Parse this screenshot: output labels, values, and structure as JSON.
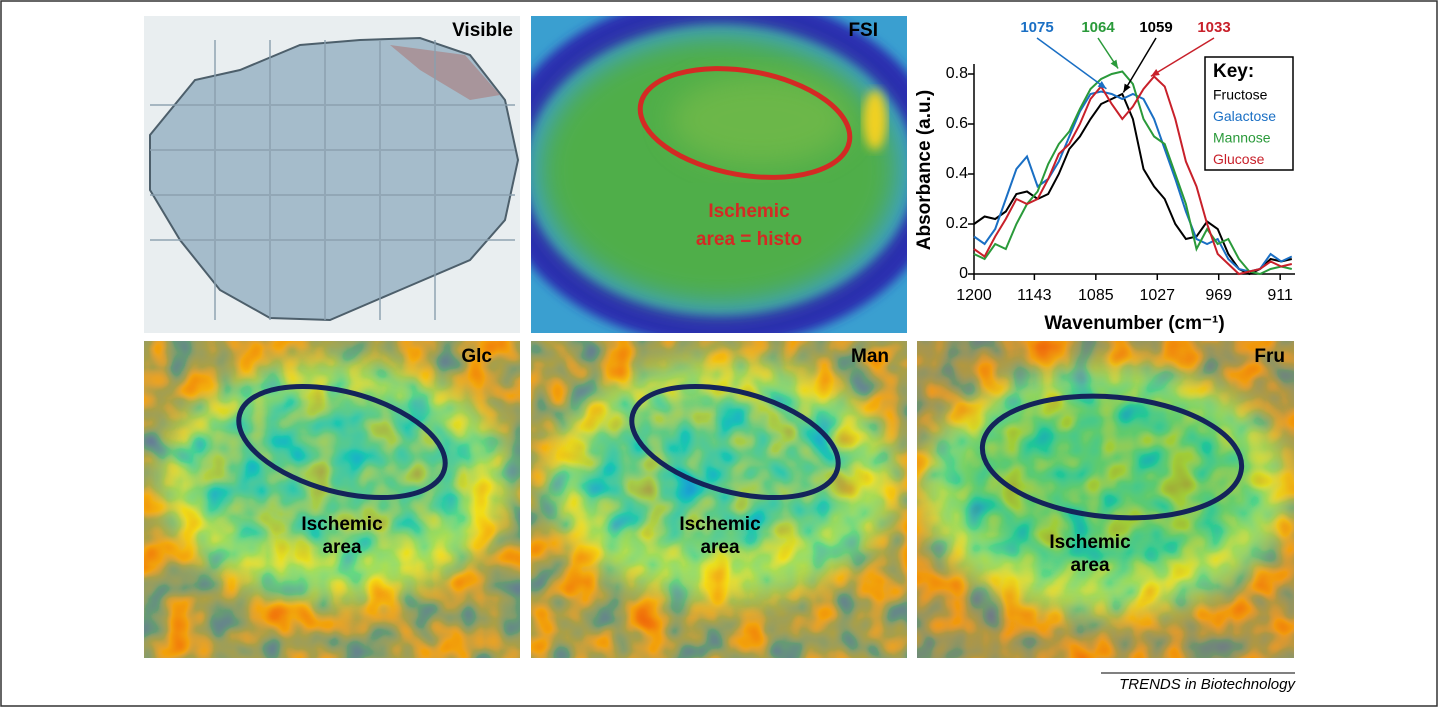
{
  "panels": [
    {
      "label": "Visible"
    },
    {
      "label": "FSI",
      "annotation": [
        "Ischemic",
        "area = histo"
      ]
    },
    {
      "label": "Glc",
      "annotation": [
        "Ischemic",
        "area"
      ]
    },
    {
      "label": "Man",
      "annotation": [
        "Ischemic",
        "area"
      ]
    },
    {
      "label": "Fru",
      "annotation": [
        "Ischemic",
        "area"
      ]
    }
  ],
  "chart_data": {
    "type": "line",
    "xlabel": "Wavenumber (cm⁻¹)",
    "ylabel": "Absorbance (a.u.)",
    "x": [
      1200,
      1190,
      1180,
      1170,
      1160,
      1150,
      1140,
      1130,
      1120,
      1110,
      1100,
      1090,
      1080,
      1070,
      1060,
      1050,
      1040,
      1030,
      1020,
      1010,
      1000,
      990,
      980,
      970,
      960,
      950,
      940,
      930,
      920,
      910,
      900
    ],
    "xlim": [
      1200,
      897
    ],
    "xticks": [
      1200,
      1143,
      1085,
      1027,
      969,
      911
    ],
    "ylim": [
      0,
      0.84
    ],
    "yticks": [
      0,
      0.2,
      0.4,
      0.6,
      0.8
    ],
    "legend_title": "Key:",
    "legend_position": "upper right",
    "series": [
      {
        "name": "Fructose",
        "color": "#000000",
        "values": [
          0.2,
          0.23,
          0.22,
          0.25,
          0.32,
          0.33,
          0.3,
          0.32,
          0.4,
          0.5,
          0.55,
          0.62,
          0.68,
          0.7,
          0.72,
          0.62,
          0.42,
          0.35,
          0.3,
          0.2,
          0.14,
          0.15,
          0.21,
          0.18,
          0.08,
          0.02,
          0.0,
          0.02,
          0.06,
          0.05,
          0.06
        ]
      },
      {
        "name": "Galactose",
        "color": "#1a6fc4",
        "values": [
          0.15,
          0.12,
          0.18,
          0.3,
          0.42,
          0.47,
          0.35,
          0.38,
          0.45,
          0.55,
          0.65,
          0.72,
          0.73,
          0.72,
          0.7,
          0.72,
          0.7,
          0.62,
          0.5,
          0.38,
          0.25,
          0.14,
          0.12,
          0.14,
          0.06,
          0.02,
          0.01,
          0.02,
          0.08,
          0.05,
          0.07
        ]
      },
      {
        "name": "Mannose",
        "color": "#2a9a3a",
        "values": [
          0.08,
          0.06,
          0.12,
          0.1,
          0.2,
          0.28,
          0.33,
          0.44,
          0.52,
          0.57,
          0.66,
          0.74,
          0.78,
          0.8,
          0.81,
          0.76,
          0.62,
          0.55,
          0.52,
          0.4,
          0.28,
          0.1,
          0.18,
          0.12,
          0.14,
          0.06,
          0.01,
          0.0,
          0.02,
          0.03,
          0.02
        ]
      },
      {
        "name": "Glucose",
        "color": "#c8202a",
        "values": [
          0.1,
          0.07,
          0.15,
          0.22,
          0.3,
          0.28,
          0.3,
          0.38,
          0.48,
          0.52,
          0.6,
          0.7,
          0.75,
          0.68,
          0.62,
          0.67,
          0.74,
          0.79,
          0.75,
          0.62,
          0.45,
          0.35,
          0.2,
          0.08,
          0.04,
          0.0,
          0.01,
          0.02,
          0.05,
          0.03,
          0.04
        ]
      }
    ],
    "peaks": [
      {
        "value": 1075,
        "color": "#1a6fc4"
      },
      {
        "value": 1064,
        "color": "#2a9a3a"
      },
      {
        "value": 1059,
        "color": "#000000"
      },
      {
        "value": 1033,
        "color": "#c8202a"
      }
    ]
  },
  "footer": "TRENDS in Biotechnology"
}
